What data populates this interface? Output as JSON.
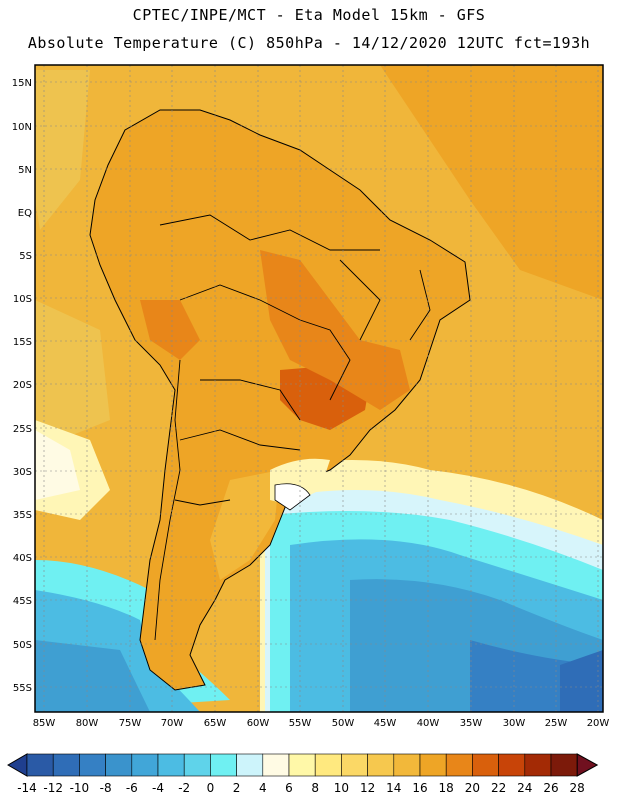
{
  "title_line1": "CPTEC/INPE/MCT -  Eta Model 15km - GFS",
  "title_line2": "Absolute Temperature (C) 850hPa - 14/12/2020 12UTC fct=193h",
  "lat_labels": [
    "15N",
    "10N",
    "5N",
    "EQ",
    "5S",
    "10S",
    "15S",
    "20S",
    "25S",
    "30S",
    "35S",
    "40S",
    "45S",
    "50S",
    "55S"
  ],
  "lon_labels": [
    "85W",
    "80W",
    "75W",
    "70W",
    "65W",
    "60W",
    "55W",
    "50W",
    "45W",
    "40W",
    "35W",
    "30W",
    "25W",
    "20W"
  ],
  "colorbar": {
    "labels": [
      "-14",
      "-12",
      "-10",
      "-8",
      "-6",
      "-4",
      "-2",
      "0",
      "2",
      "4",
      "6",
      "8",
      "10",
      "12",
      "14",
      "16",
      "18",
      "20",
      "22",
      "24",
      "26",
      "28"
    ],
    "colors": [
      "#1f3f8f",
      "#2a5aa6",
      "#2f6db7",
      "#3580c4",
      "#3a93cc",
      "#41a6d8",
      "#4cbce3",
      "#5fd3ea",
      "#6ff0f2",
      "#cdf4fb",
      "#fffbe4",
      "#fff8a8",
      "#ffe97f",
      "#fbd866",
      "#f6c84e",
      "#f2b83a",
      "#eea526",
      "#e88619",
      "#d9600c",
      "#c84408",
      "#a32a05",
      "#7c1a0a",
      "#70101f"
    ]
  },
  "map_regions": {
    "ocean_colors": [
      "#f0b63a",
      "#eec34f",
      "#fff6b6",
      "#fffbe4",
      "#d7f5fb",
      "#6ff0f2",
      "#4cbce3",
      "#3f9fd2",
      "#3580c4",
      "#2f6db7"
    ],
    "land_colors": [
      "#eea526",
      "#e88619",
      "#d9600c",
      "#f2b83a"
    ]
  }
}
